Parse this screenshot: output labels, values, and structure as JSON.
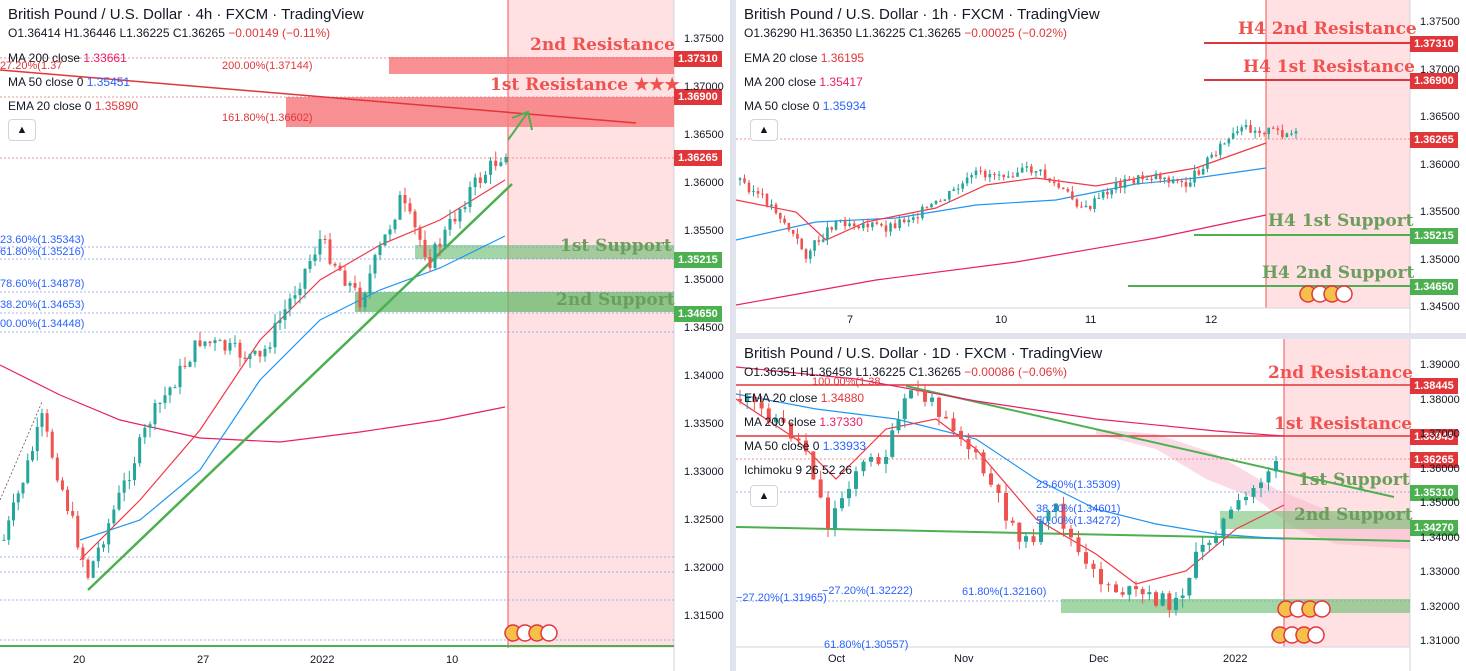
{
  "colors": {
    "resistance_zone": "#f77c80",
    "support_zone": "#66bb6a",
    "future_shade": "#ffe0e3",
    "price_tag_red": "#e0363a",
    "price_tag_green": "#4caf50",
    "up_candle": "#26a69a",
    "down_candle": "#ef5350",
    "ema20": "#f23645",
    "ma50": "#2196f3",
    "ma200": "#e91e63",
    "trendline": "#4caf50"
  },
  "charts": {
    "h4": {
      "title": "British Pound / U.S. Dollar · 4h · FXCM · TradingView",
      "ohlc": {
        "o": "O1.36414",
        "h": "H1.36446",
        "l": "L1.36225",
        "c": "C1.36265",
        "chg": "−0.00149 (−0.11%)"
      },
      "indicators": [
        {
          "label": "MA 200 close",
          "value": "1.33661",
          "color": "pink"
        },
        {
          "label": "MA 50 close 0",
          "value": "1.35451",
          "color": "blue"
        },
        {
          "label": "EMA 20 close 0",
          "value": "1.35890",
          "color": "red"
        }
      ],
      "zones": {
        "r2": "2nd Resistance",
        "r1": "1st Resistance ★★★",
        "s1": "1st Support",
        "s2": "2nd Support"
      },
      "price_tags": {
        "r2": "1.37310",
        "r1": "1.36900",
        "last": "1.36265",
        "s1": "1.35215",
        "s2": "1.34650"
      },
      "fib_labels": [
        "200.00%(1.37144)",
        "161.80%(1.36602)",
        "23.60%(1.35343)",
        "61.80%(1.35216)",
        "78.60%(1.34878)",
        "38.20%(1.34653)",
        "00.00%(1.34448)",
        "27.20%(1.37"
      ],
      "y_ticks": [
        "1.37500",
        "1.37000",
        "1.36500",
        "1.36000",
        "1.35500",
        "1.35000",
        "1.34500",
        "1.34000",
        "1.33500",
        "1.33000",
        "1.32500",
        "1.32000",
        "1.31500"
      ],
      "x_ticks": [
        "20",
        "27",
        "2022",
        "10"
      ]
    },
    "h1": {
      "title": "British Pound / U.S. Dollar · 1h · FXCM · TradingView",
      "ohlc": {
        "o": "O1.36290",
        "h": "H1.36350",
        "l": "L1.36225",
        "c": "C1.36265",
        "chg": "−0.00025 (−0.02%)"
      },
      "indicators": [
        {
          "label": "EMA 20 close",
          "value": "1.36195",
          "color": "red"
        },
        {
          "label": "MA 200 close",
          "value": "1.35417",
          "color": "pink"
        },
        {
          "label": "MA 50 close 0",
          "value": "1.35934",
          "color": "blue"
        }
      ],
      "zones": {
        "r2": "H4 2nd Resistance",
        "r1": "H4 1st Resistance",
        "s1": "H4 1st Support",
        "s2": "H4 2nd Support"
      },
      "price_tags": {
        "r2": "1.37310",
        "r1": "1.36900",
        "last": "1.36265",
        "s1": "1.35215",
        "s2": "1.34650"
      },
      "y_ticks": [
        "1.37500",
        "1.37000",
        "1.36500",
        "1.36000",
        "1.35500",
        "1.35000",
        "1.34500"
      ],
      "x_ticks": [
        "7",
        "10",
        "11",
        "12"
      ]
    },
    "d1": {
      "title": "British Pound / U.S. Dollar · 1D · FXCM · TradingView",
      "ohlc": {
        "o": "O1.36351",
        "h": "H1.36458",
        "l": "L1.36225",
        "c": "C1.36265",
        "chg": "−0.00086 (−0.06%)"
      },
      "indicators": [
        {
          "label": "EMA 20 close",
          "value": "1.34880",
          "color": "red"
        },
        {
          "label": "MA 200 close",
          "value": "1.37330",
          "color": "pink"
        },
        {
          "label": "MA 50 close 0",
          "value": "1.33933",
          "color": "blue"
        },
        {
          "label": "Ichimoku 9 26 52 26",
          "value": "",
          "color": "red"
        }
      ],
      "zones": {
        "r2": "2nd Resistance",
        "r1": "1st Resistance",
        "s1": "1st Support",
        "s2": "2nd Support"
      },
      "price_tags": {
        "r2": "1.38445",
        "r1": "1.36945",
        "last": "1.36265",
        "s1": "1.35310",
        "s2": "1.34270"
      },
      "fib_labels": [
        "23.60%(1.35309)",
        "38.20%(1.34601)",
        "50.00%(1.34272)",
        "−27.20%(1.31965)",
        "−27.20%(1.32222)",
        "61.80%(1.32160)",
        "61.80%(1.30557)",
        "100.00%(1.38"
      ],
      "y_ticks": [
        "1.39000",
        "1.38000",
        "1.37000",
        "1.36000",
        "1.35000",
        "1.34000",
        "1.33000",
        "1.32000",
        "1.31000"
      ],
      "x_ticks": [
        "Oct",
        "Nov",
        "Dec",
        "2022"
      ]
    }
  },
  "chart_data": [
    {
      "type": "candlestick",
      "title": "British Pound / U.S. Dollar · 4h · FXCM · TradingView",
      "ylim": [
        1.3125,
        1.3775
      ],
      "resistance_levels": [
        1.3731,
        1.369
      ],
      "support_levels": [
        1.35215,
        1.3465
      ],
      "last_price": 1.36265
    },
    {
      "type": "candlestick",
      "title": "British Pound / U.S. Dollar · 1h · FXCM · TradingView",
      "ylim": [
        1.3425,
        1.3775
      ],
      "resistance_levels": [
        1.3731,
        1.369
      ],
      "support_levels": [
        1.35215,
        1.3465
      ],
      "last_price": 1.36265
    },
    {
      "type": "candlestick",
      "title": "British Pound / U.S. Dollar · 1D · FXCM · TradingView",
      "ylim": [
        1.305,
        1.393
      ],
      "resistance_levels": [
        1.38445,
        1.36945
      ],
      "support_levels": [
        1.3531,
        1.3427
      ],
      "last_price": 1.36265
    }
  ]
}
